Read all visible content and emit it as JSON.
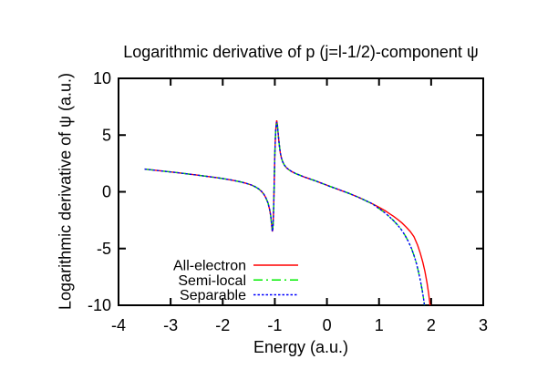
{
  "chart_data": {
    "type": "line",
    "title": "Logarithmic derivative of p (j=l-1/2)-component ψ",
    "xlabel": "Energy (a.u.)",
    "ylabel": "Logarithmic derivative of ψ (a.u.)",
    "xlim": [
      -4,
      3
    ],
    "ylim": [
      -10,
      10
    ],
    "xticks": [
      -4,
      -3,
      -2,
      -1,
      0,
      1,
      2,
      3
    ],
    "yticks": [
      -10,
      -5,
      0,
      5,
      10
    ],
    "grid": false,
    "legend_position": "inside-bottom-left",
    "background_color": "#ffffff",
    "axis_color": "#000000",
    "series": [
      {
        "name": "All-electron",
        "color": "#ff0000",
        "dash": "solid",
        "points": [
          [
            -3.5,
            2.0
          ],
          [
            -3.3,
            1.9
          ],
          [
            -3.1,
            1.8
          ],
          [
            -2.9,
            1.7
          ],
          [
            -2.7,
            1.59
          ],
          [
            -2.5,
            1.48
          ],
          [
            -2.3,
            1.36
          ],
          [
            -2.1,
            1.24
          ],
          [
            -1.95,
            1.13
          ],
          [
            -1.8,
            1.01
          ],
          [
            -1.65,
            0.87
          ],
          [
            -1.55,
            0.75
          ],
          [
            -1.45,
            0.6
          ],
          [
            -1.38,
            0.45
          ],
          [
            -1.31,
            0.26
          ],
          [
            -1.26,
            0.06
          ],
          [
            -1.21,
            -0.22
          ],
          [
            -1.17,
            -0.55
          ],
          [
            -1.13,
            -1.0
          ],
          [
            -1.1,
            -1.55
          ],
          [
            -1.08,
            -2.1
          ],
          [
            -1.065,
            -2.7
          ],
          [
            -1.055,
            -3.2
          ],
          [
            -1.048,
            -3.5
          ],
          [
            -1.04,
            -3.35
          ],
          [
            -1.033,
            -2.9
          ],
          [
            -1.026,
            -2.1
          ],
          [
            -1.019,
            -0.9
          ],
          [
            -1.012,
            0.6
          ],
          [
            -1.005,
            2.1
          ],
          [
            -0.998,
            3.5
          ],
          [
            -0.99,
            4.7
          ],
          [
            -0.982,
            5.5
          ],
          [
            -0.973,
            6.05
          ],
          [
            -0.963,
            6.3
          ],
          [
            -0.952,
            5.95
          ],
          [
            -0.94,
            5.3
          ],
          [
            -0.925,
            4.6
          ],
          [
            -0.91,
            3.95
          ],
          [
            -0.895,
            3.45
          ],
          [
            -0.875,
            3.0
          ],
          [
            -0.85,
            2.65
          ],
          [
            -0.82,
            2.38
          ],
          [
            -0.78,
            2.14
          ],
          [
            -0.73,
            1.94
          ],
          [
            -0.67,
            1.77
          ],
          [
            -0.6,
            1.61
          ],
          [
            -0.52,
            1.46
          ],
          [
            -0.44,
            1.32
          ],
          [
            -0.36,
            1.19
          ],
          [
            -0.28,
            1.06
          ],
          [
            -0.2,
            0.93
          ],
          [
            -0.12,
            0.79
          ],
          [
            -0.04,
            0.65
          ],
          [
            0.04,
            0.51
          ],
          [
            0.12,
            0.38
          ],
          [
            0.2,
            0.24
          ],
          [
            0.3,
            0.07
          ],
          [
            0.4,
            -0.1
          ],
          [
            0.5,
            -0.28
          ],
          [
            0.6,
            -0.47
          ],
          [
            0.7,
            -0.68
          ],
          [
            0.8,
            -0.9
          ],
          [
            0.88,
            -1.08
          ],
          [
            0.96,
            -1.27
          ],
          [
            1.04,
            -1.47
          ],
          [
            1.12,
            -1.68
          ],
          [
            1.2,
            -1.92
          ],
          [
            1.28,
            -2.16
          ],
          [
            1.36,
            -2.44
          ],
          [
            1.44,
            -2.75
          ],
          [
            1.52,
            -3.1
          ],
          [
            1.6,
            -3.5
          ],
          [
            1.67,
            -3.95
          ],
          [
            1.74,
            -4.7
          ],
          [
            1.79,
            -5.4
          ],
          [
            1.84,
            -6.2
          ],
          [
            1.88,
            -7.0
          ],
          [
            1.92,
            -8.0
          ],
          [
            1.95,
            -8.9
          ],
          [
            1.97,
            -9.6
          ],
          [
            1.99,
            -10.4
          ]
        ]
      },
      {
        "name": "Semi-local",
        "color": "#00ee00",
        "dash": "dash-dot",
        "points": [
          [
            -3.5,
            2.0
          ],
          [
            -3.3,
            1.9
          ],
          [
            -3.1,
            1.8
          ],
          [
            -2.9,
            1.7
          ],
          [
            -2.7,
            1.59
          ],
          [
            -2.5,
            1.48
          ],
          [
            -2.3,
            1.36
          ],
          [
            -2.1,
            1.24
          ],
          [
            -1.95,
            1.13
          ],
          [
            -1.8,
            1.01
          ],
          [
            -1.65,
            0.87
          ],
          [
            -1.55,
            0.75
          ],
          [
            -1.45,
            0.6
          ],
          [
            -1.38,
            0.45
          ],
          [
            -1.31,
            0.26
          ],
          [
            -1.26,
            0.06
          ],
          [
            -1.21,
            -0.22
          ],
          [
            -1.17,
            -0.55
          ],
          [
            -1.13,
            -1.0
          ],
          [
            -1.1,
            -1.55
          ],
          [
            -1.08,
            -2.1
          ],
          [
            -1.065,
            -2.7
          ],
          [
            -1.055,
            -3.2
          ],
          [
            -1.048,
            -3.5
          ],
          [
            -1.04,
            -3.35
          ],
          [
            -1.033,
            -2.9
          ],
          [
            -1.026,
            -2.1
          ],
          [
            -1.019,
            -0.9
          ],
          [
            -1.012,
            0.6
          ],
          [
            -1.005,
            2.1
          ],
          [
            -0.998,
            3.5
          ],
          [
            -0.99,
            4.7
          ],
          [
            -0.982,
            5.5
          ],
          [
            -0.973,
            6.0
          ],
          [
            -0.963,
            6.15
          ],
          [
            -0.952,
            5.9
          ],
          [
            -0.94,
            5.3
          ],
          [
            -0.925,
            4.6
          ],
          [
            -0.91,
            3.95
          ],
          [
            -0.895,
            3.45
          ],
          [
            -0.875,
            3.0
          ],
          [
            -0.85,
            2.65
          ],
          [
            -0.82,
            2.38
          ],
          [
            -0.78,
            2.14
          ],
          [
            -0.73,
            1.94
          ],
          [
            -0.67,
            1.77
          ],
          [
            -0.6,
            1.61
          ],
          [
            -0.52,
            1.46
          ],
          [
            -0.44,
            1.32
          ],
          [
            -0.36,
            1.19
          ],
          [
            -0.28,
            1.06
          ],
          [
            -0.2,
            0.93
          ],
          [
            -0.12,
            0.79
          ],
          [
            -0.04,
            0.65
          ],
          [
            0.04,
            0.51
          ],
          [
            0.12,
            0.38
          ],
          [
            0.2,
            0.24
          ],
          [
            0.3,
            0.07
          ],
          [
            0.4,
            -0.1
          ],
          [
            0.5,
            -0.28
          ],
          [
            0.6,
            -0.47
          ],
          [
            0.7,
            -0.68
          ],
          [
            0.8,
            -0.9
          ],
          [
            0.88,
            -1.08
          ],
          [
            0.96,
            -1.35
          ],
          [
            1.04,
            -1.6
          ],
          [
            1.12,
            -1.88
          ],
          [
            1.2,
            -2.2
          ],
          [
            1.28,
            -2.55
          ],
          [
            1.36,
            -2.95
          ],
          [
            1.43,
            -3.35
          ],
          [
            1.5,
            -3.85
          ],
          [
            1.56,
            -4.35
          ],
          [
            1.62,
            -4.95
          ],
          [
            1.67,
            -5.6
          ],
          [
            1.72,
            -6.35
          ],
          [
            1.76,
            -7.1
          ],
          [
            1.8,
            -7.95
          ],
          [
            1.83,
            -8.7
          ],
          [
            1.86,
            -9.6
          ],
          [
            1.88,
            -10.4
          ]
        ]
      },
      {
        "name": "Separable",
        "color": "#0000ff",
        "dash": "dotted",
        "points": [
          [
            -3.5,
            2.0
          ],
          [
            -3.3,
            1.9
          ],
          [
            -3.1,
            1.8
          ],
          [
            -2.9,
            1.7
          ],
          [
            -2.7,
            1.59
          ],
          [
            -2.5,
            1.48
          ],
          [
            -2.3,
            1.36
          ],
          [
            -2.1,
            1.24
          ],
          [
            -1.95,
            1.13
          ],
          [
            -1.8,
            1.01
          ],
          [
            -1.65,
            0.87
          ],
          [
            -1.55,
            0.75
          ],
          [
            -1.45,
            0.6
          ],
          [
            -1.38,
            0.45
          ],
          [
            -1.31,
            0.26
          ],
          [
            -1.26,
            0.06
          ],
          [
            -1.21,
            -0.22
          ],
          [
            -1.17,
            -0.55
          ],
          [
            -1.13,
            -1.0
          ],
          [
            -1.1,
            -1.55
          ],
          [
            -1.08,
            -2.1
          ],
          [
            -1.065,
            -2.7
          ],
          [
            -1.055,
            -3.2
          ],
          [
            -1.048,
            -3.5
          ],
          [
            -1.04,
            -3.35
          ],
          [
            -1.033,
            -2.9
          ],
          [
            -1.026,
            -2.1
          ],
          [
            -1.019,
            -0.9
          ],
          [
            -1.012,
            0.6
          ],
          [
            -1.005,
            2.1
          ],
          [
            -0.998,
            3.5
          ],
          [
            -0.99,
            4.7
          ],
          [
            -0.982,
            5.5
          ],
          [
            -0.973,
            6.0
          ],
          [
            -0.963,
            6.15
          ],
          [
            -0.952,
            5.9
          ],
          [
            -0.94,
            5.3
          ],
          [
            -0.925,
            4.6
          ],
          [
            -0.91,
            3.95
          ],
          [
            -0.895,
            3.45
          ],
          [
            -0.875,
            3.0
          ],
          [
            -0.85,
            2.65
          ],
          [
            -0.82,
            2.38
          ],
          [
            -0.78,
            2.14
          ],
          [
            -0.73,
            1.94
          ],
          [
            -0.67,
            1.77
          ],
          [
            -0.6,
            1.61
          ],
          [
            -0.52,
            1.46
          ],
          [
            -0.44,
            1.32
          ],
          [
            -0.36,
            1.19
          ],
          [
            -0.28,
            1.06
          ],
          [
            -0.2,
            0.93
          ],
          [
            -0.12,
            0.79
          ],
          [
            -0.04,
            0.65
          ],
          [
            0.04,
            0.51
          ],
          [
            0.12,
            0.38
          ],
          [
            0.2,
            0.24
          ],
          [
            0.3,
            0.07
          ],
          [
            0.4,
            -0.1
          ],
          [
            0.5,
            -0.28
          ],
          [
            0.6,
            -0.47
          ],
          [
            0.7,
            -0.68
          ],
          [
            0.8,
            -0.9
          ],
          [
            0.88,
            -1.08
          ],
          [
            0.96,
            -1.35
          ],
          [
            1.04,
            -1.6
          ],
          [
            1.12,
            -1.88
          ],
          [
            1.2,
            -2.2
          ],
          [
            1.28,
            -2.55
          ],
          [
            1.36,
            -2.95
          ],
          [
            1.43,
            -3.35
          ],
          [
            1.5,
            -3.85
          ],
          [
            1.56,
            -4.35
          ],
          [
            1.62,
            -4.95
          ],
          [
            1.67,
            -5.6
          ],
          [
            1.72,
            -6.35
          ],
          [
            1.76,
            -7.1
          ],
          [
            1.8,
            -7.95
          ],
          [
            1.83,
            -8.7
          ],
          [
            1.86,
            -9.6
          ],
          [
            1.88,
            -10.4
          ]
        ]
      }
    ]
  }
}
